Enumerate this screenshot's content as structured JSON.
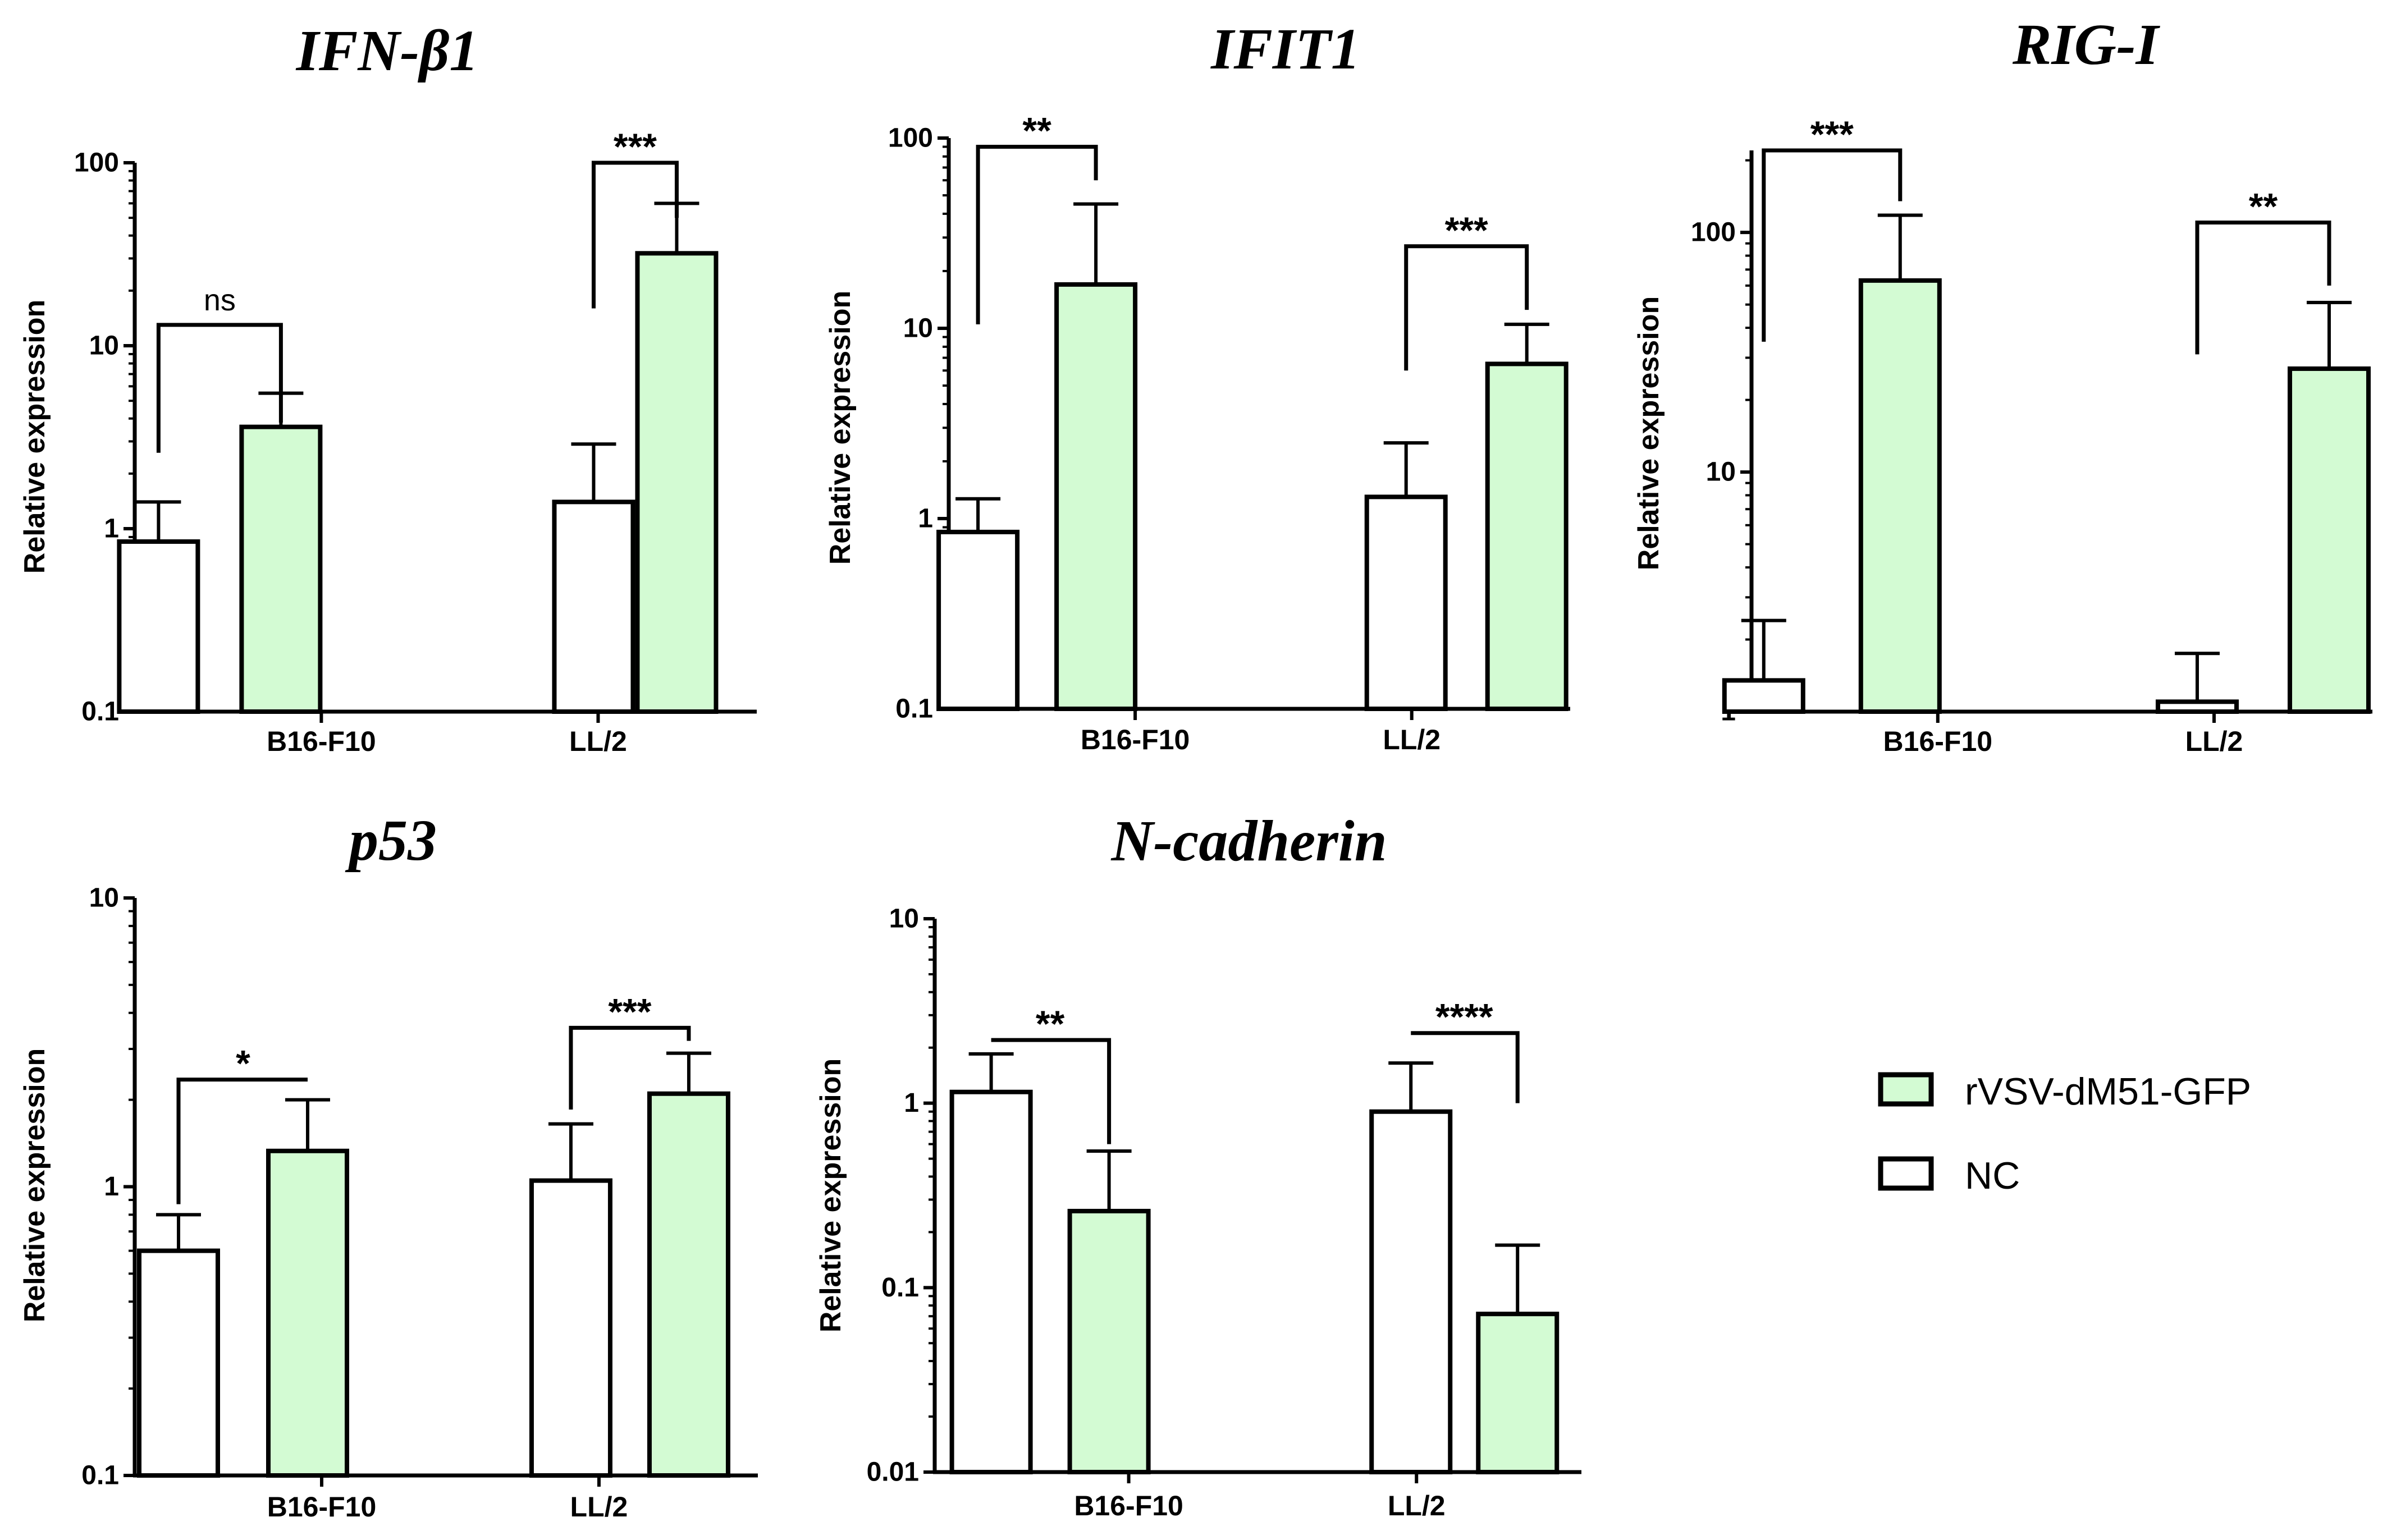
{
  "colors": {
    "treated": "#d3fbd3",
    "nc": "#ffffff",
    "stroke": "#000000"
  },
  "legend": {
    "items": [
      {
        "key": "treated",
        "label": "rVSV-dM51-GFP"
      },
      {
        "key": "nc",
        "label": "NC"
      }
    ]
  },
  "chart_data": [
    {
      "type": "bar",
      "scale": "log",
      "title": "IFN-β1",
      "ylabel": "Relative expression",
      "xlabel": "",
      "categories": [
        "B16-F10",
        "LL/2"
      ],
      "ylim": [
        0.1,
        100
      ],
      "ticks": [
        0.1,
        1,
        10,
        100
      ],
      "tick_labels": [
        "0.1",
        "1",
        "10",
        "100"
      ],
      "series": [
        {
          "name": "NC",
          "key": "nc",
          "values": [
            0.85,
            1.4
          ],
          "err_upper": [
            1.4,
            2.9
          ]
        },
        {
          "name": "rVSV-dM51-GFP",
          "key": "treated",
          "values": [
            3.6,
            32
          ],
          "err_upper": [
            5.5,
            60
          ]
        }
      ],
      "significance": [
        {
          "category": 0,
          "label": "ns",
          "left_y": 2.6,
          "right_y": 3.8,
          "top_y": 13
        },
        {
          "category": 1,
          "label": "***",
          "left_y": 16,
          "right_y": 50,
          "top_y": 100
        }
      ]
    },
    {
      "type": "bar",
      "scale": "log",
      "title": "IFIT1",
      "ylabel": "Relative expression",
      "xlabel": "",
      "categories": [
        "B16-F10",
        "LL/2"
      ],
      "ylim": [
        0.1,
        100
      ],
      "ticks": [
        0.1,
        1,
        10,
        100
      ],
      "tick_labels": [
        "0.1",
        "1",
        "10",
        "100"
      ],
      "series": [
        {
          "name": "NC",
          "key": "nc",
          "values": [
            0.85,
            1.3
          ],
          "err_upper": [
            1.27,
            2.5
          ]
        },
        {
          "name": "rVSV-dM51-GFP",
          "key": "treated",
          "values": [
            17,
            6.5
          ],
          "err_upper": [
            45,
            10.5
          ]
        }
      ],
      "significance": [
        {
          "category": 0,
          "label": "**",
          "left_y": 10.5,
          "right_y": 60,
          "top_y": 90
        },
        {
          "category": 1,
          "label": "***",
          "left_y": 6,
          "right_y": 12.5,
          "top_y": 27
        }
      ]
    },
    {
      "type": "bar",
      "scale": "log",
      "title": "RIG-I",
      "ylabel": "Relative expression",
      "xlabel": "",
      "categories": [
        "B16-F10",
        "LL/2"
      ],
      "ylim": [
        1,
        220
      ],
      "ticks": [
        1,
        10,
        100
      ],
      "tick_labels": [
        "1",
        "10",
        "100"
      ],
      "series": [
        {
          "name": "NC",
          "key": "nc",
          "values": [
            1.35,
            1.1
          ],
          "err_upper": [
            2.4,
            1.75
          ]
        },
        {
          "name": "rVSV-dM51-GFP",
          "key": "treated",
          "values": [
            63,
            27
          ],
          "err_upper": [
            118,
            51
          ]
        }
      ],
      "significance": [
        {
          "category": 0,
          "label": "***",
          "left_y": 35,
          "right_y": 135,
          "top_y": 220
        },
        {
          "category": 1,
          "label": "**",
          "left_y": 31,
          "right_y": 60,
          "top_y": 110
        }
      ]
    },
    {
      "type": "bar",
      "scale": "log",
      "title": "p53",
      "ylabel": "Relative expression",
      "xlabel": "",
      "categories": [
        "B16-F10",
        "LL/2"
      ],
      "ylim": [
        0.1,
        10
      ],
      "ticks": [
        0.1,
        1,
        10
      ],
      "tick_labels": [
        "0.1",
        "1",
        "10"
      ],
      "series": [
        {
          "name": "NC",
          "key": "nc",
          "values": [
            0.6,
            1.05
          ],
          "err_upper": [
            0.8,
            1.65
          ]
        },
        {
          "name": "rVSV-dM51-GFP",
          "key": "treated",
          "values": [
            1.33,
            2.1
          ],
          "err_upper": [
            2.0,
            2.9
          ]
        }
      ],
      "significance": [
        {
          "category": 0,
          "label": "*",
          "left_y": 0.87,
          "right_y": 2.35,
          "top_y": 2.35
        },
        {
          "category": 1,
          "label": "***",
          "left_y": 1.85,
          "right_y": 3.2,
          "top_y": 3.55
        }
      ]
    },
    {
      "type": "bar",
      "scale": "log",
      "title": "N-cadherin",
      "ylabel": "Relative expression",
      "xlabel": "",
      "categories": [
        "B16-F10",
        "LL/2"
      ],
      "ylim": [
        0.01,
        10
      ],
      "ticks": [
        0.01,
        0.1,
        1,
        10
      ],
      "tick_labels": [
        "0.01",
        "0.1",
        "1",
        "10"
      ],
      "series": [
        {
          "name": "NC",
          "key": "nc",
          "values": [
            1.15,
            0.9
          ],
          "err_upper": [
            1.85,
            1.65
          ]
        },
        {
          "name": "rVSV-dM51-GFP",
          "key": "treated",
          "values": [
            0.26,
            0.072
          ],
          "err_upper": [
            0.55,
            0.17
          ]
        }
      ],
      "significance": [
        {
          "category": 0,
          "label": "**",
          "left_y": 2.2,
          "right_y": 0.6,
          "top_y": 2.2
        },
        {
          "category": 1,
          "label": "****",
          "left_y": 2.4,
          "right_y": 1.0,
          "top_y": 2.4
        }
      ]
    }
  ]
}
